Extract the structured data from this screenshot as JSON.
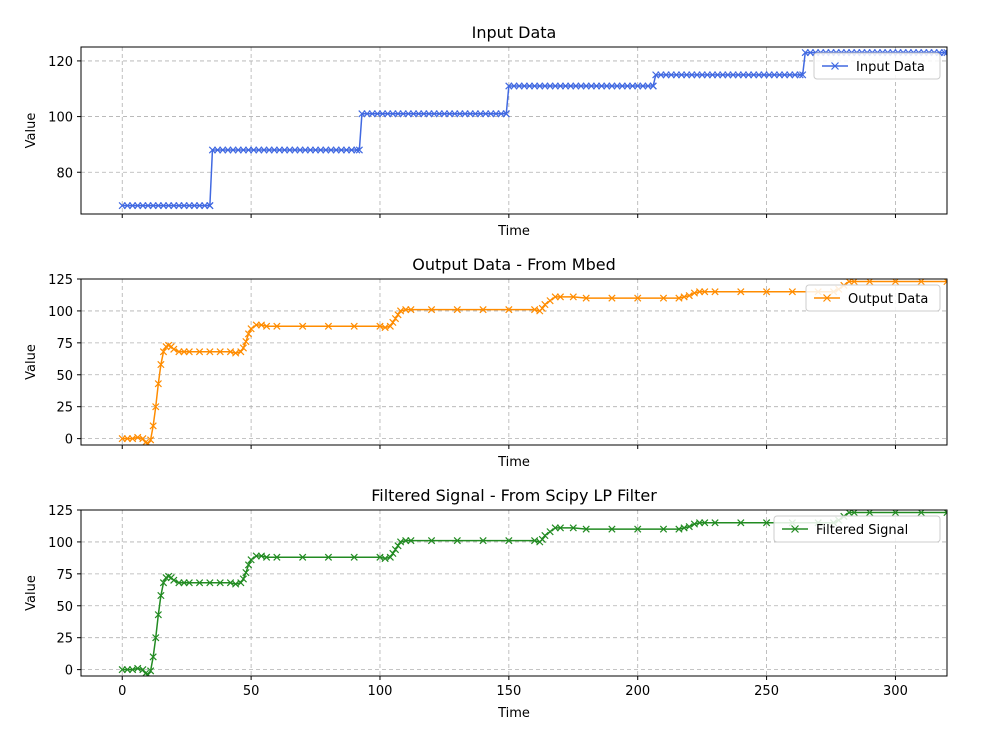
{
  "chart_data": [
    {
      "type": "line",
      "title": "Input Data",
      "xlabel": "Time",
      "ylabel": "Value",
      "xlim": [
        -16,
        320
      ],
      "ylim": [
        65,
        125
      ],
      "xticks": [
        0,
        50,
        100,
        150,
        200,
        250,
        300
      ],
      "xtick_labels_shown": false,
      "yticks": [
        80,
        100,
        120
      ],
      "grid": true,
      "legend_position": "top-right",
      "series": [
        {
          "name": "Input Data",
          "color": "#4169e1",
          "marker": "x",
          "steps": [
            {
              "from": 0,
              "to": 34,
              "value": 68
            },
            {
              "from": 35,
              "to": 92,
              "value": 88
            },
            {
              "from": 93,
              "to": 149,
              "value": 101
            },
            {
              "from": 150,
              "to": 206,
              "value": 111
            },
            {
              "from": 207,
              "to": 264,
              "value": 115
            },
            {
              "from": 265,
              "to": 320,
              "value": 123
            }
          ]
        }
      ]
    },
    {
      "type": "line",
      "title": "Output Data - From Mbed",
      "xlabel": "Time",
      "ylabel": "Value",
      "xlim": [
        -16,
        320
      ],
      "ylim": [
        -5,
        125
      ],
      "xticks": [
        0,
        50,
        100,
        150,
        200,
        250,
        300
      ],
      "xtick_labels_shown": false,
      "yticks": [
        0,
        25,
        50,
        75,
        100,
        125
      ],
      "grid": true,
      "legend_position": "top-right",
      "series": [
        {
          "name": "Output Data",
          "color": "#ff8c00",
          "marker": "x",
          "points": [
            [
              0,
              0
            ],
            [
              2,
              0
            ],
            [
              4,
              0
            ],
            [
              6,
              1
            ],
            [
              8,
              0
            ],
            [
              9,
              -3
            ],
            [
              10,
              -4
            ],
            [
              11,
              -1
            ],
            [
              12,
              10
            ],
            [
              13,
              25
            ],
            [
              14,
              43
            ],
            [
              15,
              58
            ],
            [
              16,
              68
            ],
            [
              17,
              72
            ],
            [
              18,
              73
            ],
            [
              19,
              72
            ],
            [
              20,
              70
            ],
            [
              22,
              68
            ],
            [
              24,
              68
            ],
            [
              26,
              68
            ],
            [
              30,
              68
            ],
            [
              34,
              68
            ],
            [
              38,
              68
            ],
            [
              42,
              68
            ],
            [
              44,
              67
            ],
            [
              46,
              68
            ],
            [
              47,
              71
            ],
            [
              48,
              76
            ],
            [
              49,
              82
            ],
            [
              50,
              86
            ],
            [
              52,
              89
            ],
            [
              54,
              89
            ],
            [
              56,
              88
            ],
            [
              60,
              88
            ],
            [
              70,
              88
            ],
            [
              80,
              88
            ],
            [
              90,
              88
            ],
            [
              100,
              88
            ],
            [
              102,
              87
            ],
            [
              104,
              88
            ],
            [
              105,
              91
            ],
            [
              106,
              94
            ],
            [
              107,
              97
            ],
            [
              108,
              100
            ],
            [
              110,
              101
            ],
            [
              112,
              101
            ],
            [
              120,
              101
            ],
            [
              130,
              101
            ],
            [
              140,
              101
            ],
            [
              150,
              101
            ],
            [
              160,
              101
            ],
            [
              162,
              100
            ],
            [
              163,
              102
            ],
            [
              164,
              105
            ],
            [
              166,
              108
            ],
            [
              168,
              111
            ],
            [
              170,
              111
            ],
            [
              175,
              111
            ],
            [
              180,
              110
            ],
            [
              190,
              110
            ],
            [
              200,
              110
            ],
            [
              210,
              110
            ],
            [
              216,
              110
            ],
            [
              218,
              111
            ],
            [
              220,
              112
            ],
            [
              222,
              114
            ],
            [
              224,
              115
            ],
            [
              226,
              115
            ],
            [
              230,
              115
            ],
            [
              240,
              115
            ],
            [
              250,
              115
            ],
            [
              260,
              115
            ],
            [
              270,
              115
            ],
            [
              276,
              115
            ],
            [
              278,
              117
            ],
            [
              280,
              120
            ],
            [
              282,
              123
            ],
            [
              284,
              123
            ],
            [
              290,
              123
            ],
            [
              300,
              123
            ],
            [
              310,
              123
            ],
            [
              320,
              123
            ]
          ]
        }
      ]
    },
    {
      "type": "line",
      "title": "Filtered Signal - From Scipy LP Filter",
      "xlabel": "Time",
      "ylabel": "Value",
      "xlim": [
        -16,
        320
      ],
      "ylim": [
        -5,
        125
      ],
      "xticks": [
        0,
        50,
        100,
        150,
        200,
        250,
        300
      ],
      "xtick_labels": [
        "0",
        "50",
        "100",
        "150",
        "200",
        "250",
        "300"
      ],
      "yticks": [
        0,
        25,
        50,
        75,
        100,
        125
      ],
      "grid": true,
      "legend_position": "top-right",
      "series": [
        {
          "name": "Filtered Signal",
          "color": "#228b22",
          "marker": "x",
          "points": [
            [
              0,
              0
            ],
            [
              2,
              0
            ],
            [
              4,
              0
            ],
            [
              6,
              1
            ],
            [
              8,
              0
            ],
            [
              9,
              -3
            ],
            [
              10,
              -4
            ],
            [
              11,
              -1
            ],
            [
              12,
              10
            ],
            [
              13,
              25
            ],
            [
              14,
              43
            ],
            [
              15,
              58
            ],
            [
              16,
              68
            ],
            [
              17,
              72
            ],
            [
              18,
              73
            ],
            [
              19,
              72
            ],
            [
              20,
              70
            ],
            [
              22,
              68
            ],
            [
              24,
              68
            ],
            [
              26,
              68
            ],
            [
              30,
              68
            ],
            [
              34,
              68
            ],
            [
              38,
              68
            ],
            [
              42,
              68
            ],
            [
              44,
              67
            ],
            [
              46,
              68
            ],
            [
              47,
              71
            ],
            [
              48,
              76
            ],
            [
              49,
              82
            ],
            [
              50,
              86
            ],
            [
              52,
              89
            ],
            [
              54,
              89
            ],
            [
              56,
              88
            ],
            [
              60,
              88
            ],
            [
              70,
              88
            ],
            [
              80,
              88
            ],
            [
              90,
              88
            ],
            [
              100,
              88
            ],
            [
              102,
              87
            ],
            [
              104,
              88
            ],
            [
              105,
              91
            ],
            [
              106,
              94
            ],
            [
              107,
              97
            ],
            [
              108,
              100
            ],
            [
              110,
              101
            ],
            [
              112,
              101
            ],
            [
              120,
              101
            ],
            [
              130,
              101
            ],
            [
              140,
              101
            ],
            [
              150,
              101
            ],
            [
              160,
              101
            ],
            [
              162,
              100
            ],
            [
              163,
              102
            ],
            [
              164,
              105
            ],
            [
              166,
              108
            ],
            [
              168,
              111
            ],
            [
              170,
              111
            ],
            [
              175,
              111
            ],
            [
              180,
              110
            ],
            [
              190,
              110
            ],
            [
              200,
              110
            ],
            [
              210,
              110
            ],
            [
              216,
              110
            ],
            [
              218,
              111
            ],
            [
              220,
              112
            ],
            [
              222,
              114
            ],
            [
              224,
              115
            ],
            [
              226,
              115
            ],
            [
              230,
              115
            ],
            [
              240,
              115
            ],
            [
              250,
              115
            ],
            [
              260,
              115
            ],
            [
              270,
              115
            ],
            [
              276,
              115
            ],
            [
              278,
              117
            ],
            [
              280,
              120
            ],
            [
              282,
              123
            ],
            [
              284,
              123
            ],
            [
              290,
              123
            ],
            [
              300,
              123
            ],
            [
              310,
              123
            ],
            [
              320,
              123
            ]
          ]
        }
      ]
    }
  ]
}
